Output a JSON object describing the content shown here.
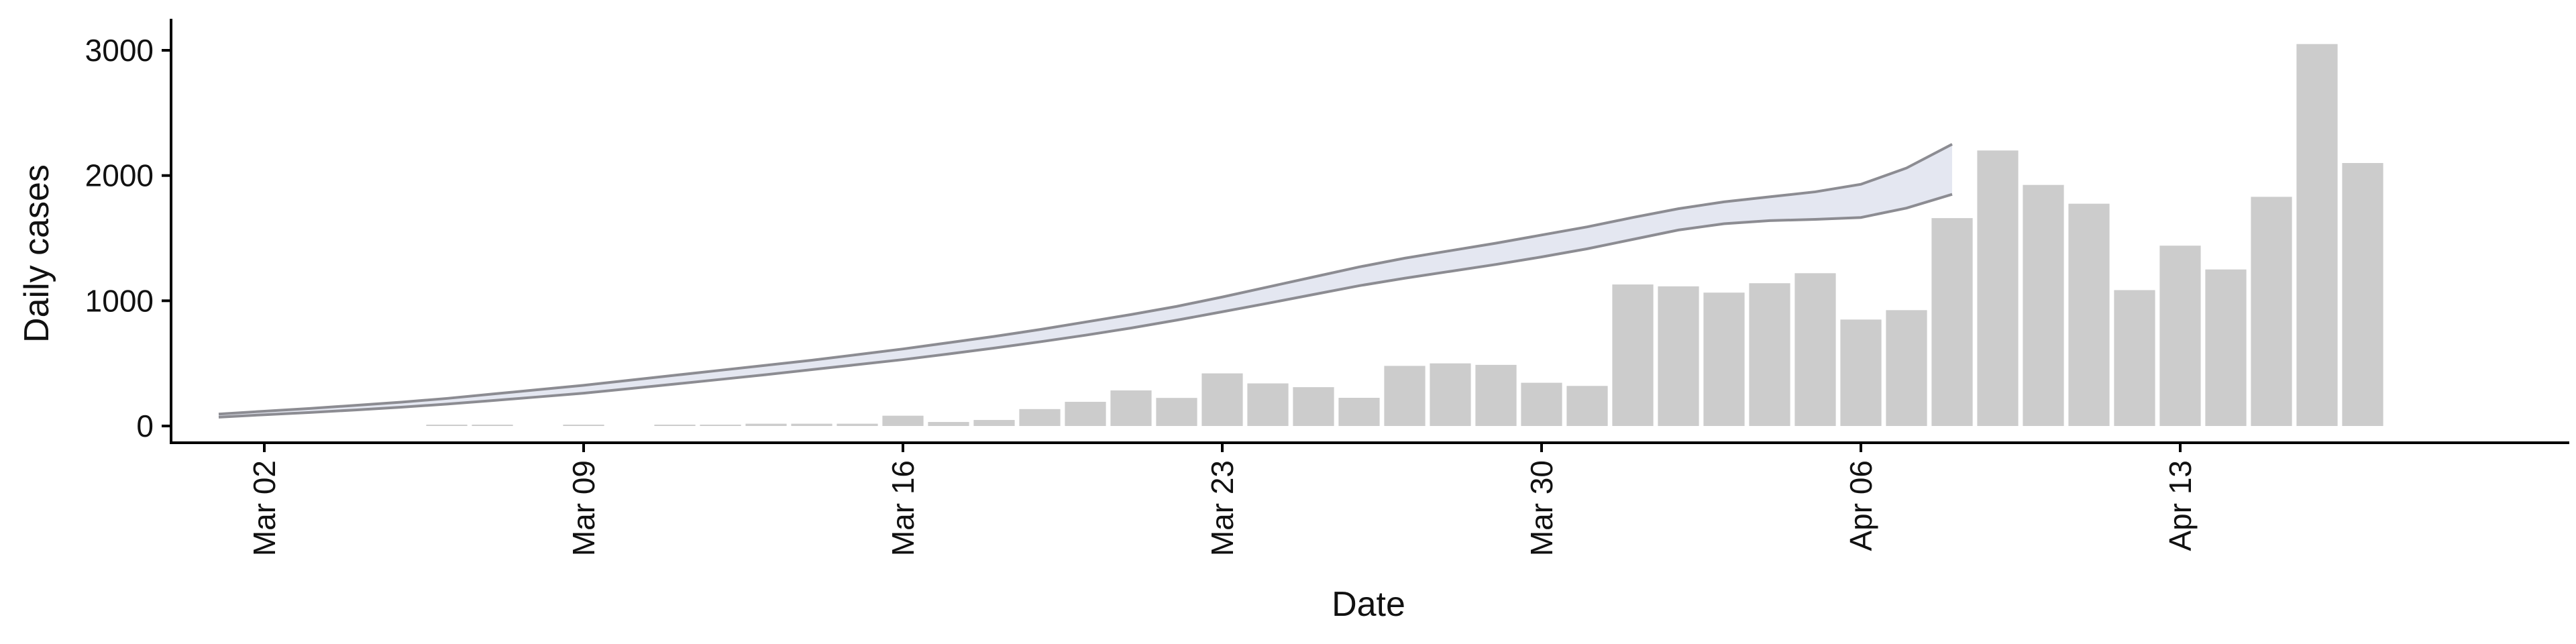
{
  "chart_data": {
    "type": "bar",
    "title": "",
    "xlabel": "Date",
    "ylabel": "Daily cases",
    "grid": false,
    "ylim": [
      -150,
      3200
    ],
    "y_ticks": [
      0,
      1000,
      2000,
      3000
    ],
    "y_tick_labels": [
      "0",
      "1000",
      "2000",
      "3000"
    ],
    "x_range": [
      "2020-02-26",
      "2020-04-21"
    ],
    "x_ticks": [
      "2020-03-02",
      "2020-03-09",
      "2020-03-16",
      "2020-03-23",
      "2020-03-30",
      "2020-04-06",
      "2020-04-13"
    ],
    "x_tick_labels": [
      "Mar 02",
      "Mar 09",
      "Mar 16",
      "Mar 23",
      "Mar 30",
      "Apr 06",
      "Apr 13"
    ],
    "bars": {
      "color": "#cccccc",
      "dates": [
        "2020-03-06",
        "2020-03-07",
        "2020-03-08",
        "2020-03-09",
        "2020-03-10",
        "2020-03-11",
        "2020-03-12",
        "2020-03-13",
        "2020-03-14",
        "2020-03-15",
        "2020-03-16",
        "2020-03-17",
        "2020-03-18",
        "2020-03-19",
        "2020-03-20",
        "2020-03-21",
        "2020-03-22",
        "2020-03-23",
        "2020-03-24",
        "2020-03-25",
        "2020-03-26",
        "2020-03-27",
        "2020-03-28",
        "2020-03-29",
        "2020-03-30",
        "2020-03-31",
        "2020-04-01",
        "2020-04-02",
        "2020-04-03",
        "2020-04-04",
        "2020-04-05",
        "2020-04-06",
        "2020-04-07",
        "2020-04-08",
        "2020-04-09",
        "2020-04-10",
        "2020-04-11",
        "2020-04-12",
        "2020-04-13",
        "2020-04-14",
        "2020-04-15",
        "2020-04-16",
        "2020-04-17"
      ],
      "values": [
        4,
        4,
        0,
        6,
        0,
        4,
        10,
        18,
        18,
        18,
        82,
        32,
        48,
        135,
        193,
        284,
        224,
        420,
        340,
        310,
        225,
        480,
        500,
        488,
        345,
        320,
        1130,
        1115,
        1065,
        1140,
        1220,
        850,
        925,
        1660,
        2200,
        1925,
        1775,
        1085,
        1440,
        1250,
        1830,
        3050,
        2100
      ]
    },
    "band": {
      "color": "#dfe3ef",
      "line_color": "#8c8c92",
      "dates": [
        "2020-03-01",
        "2020-03-02",
        "2020-03-03",
        "2020-03-04",
        "2020-03-05",
        "2020-03-06",
        "2020-03-07",
        "2020-03-08",
        "2020-03-09",
        "2020-03-10",
        "2020-03-11",
        "2020-03-12",
        "2020-03-13",
        "2020-03-14",
        "2020-03-15",
        "2020-03-16",
        "2020-03-17",
        "2020-03-18",
        "2020-03-19",
        "2020-03-20",
        "2020-03-21",
        "2020-03-22",
        "2020-03-23",
        "2020-03-24",
        "2020-03-25",
        "2020-03-26",
        "2020-03-27",
        "2020-03-28",
        "2020-03-29",
        "2020-03-30",
        "2020-03-31",
        "2020-04-01",
        "2020-04-02",
        "2020-04-03",
        "2020-04-04",
        "2020-04-05",
        "2020-04-06",
        "2020-04-07",
        "2020-04-08"
      ],
      "upper": [
        95,
        118,
        140,
        165,
        190,
        220,
        255,
        290,
        325,
        365,
        405,
        445,
        485,
        525,
        570,
        615,
        665,
        715,
        770,
        830,
        890,
        955,
        1030,
        1110,
        1190,
        1270,
        1340,
        1400,
        1460,
        1525,
        1590,
        1665,
        1735,
        1790,
        1830,
        1870,
        1930,
        2060,
        2250
      ],
      "lower": [
        70,
        90,
        108,
        128,
        150,
        175,
        203,
        232,
        262,
        298,
        335,
        372,
        410,
        450,
        490,
        530,
        575,
        622,
        672,
        725,
        782,
        845,
        912,
        980,
        1050,
        1120,
        1180,
        1235,
        1290,
        1350,
        1415,
        1490,
        1565,
        1615,
        1640,
        1650,
        1665,
        1740,
        1850
      ]
    }
  }
}
